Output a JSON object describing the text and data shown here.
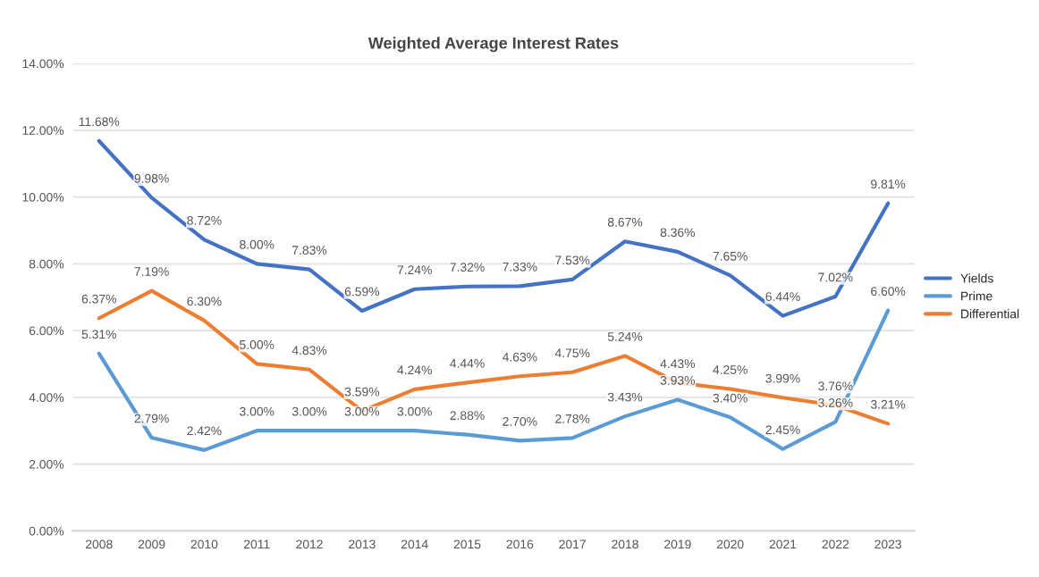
{
  "chart_data": {
    "type": "line",
    "title": "Weighted Average Interest Rates",
    "categories": [
      "2008",
      "2009",
      "2010",
      "2011",
      "2012",
      "2013",
      "2014",
      "2015",
      "2016",
      "2017",
      "2018",
      "2019",
      "2020",
      "2021",
      "2022",
      "2023"
    ],
    "series": [
      {
        "name": "Yields",
        "color": "#4472c4",
        "values": [
          11.68,
          9.98,
          8.72,
          8.0,
          7.83,
          6.59,
          7.24,
          7.32,
          7.33,
          7.53,
          8.67,
          8.36,
          7.65,
          6.44,
          7.02,
          9.81
        ],
        "value_labels": [
          "11.68%",
          "9.98%",
          "8.72%",
          "8.00%",
          "7.83%",
          "6.59%",
          "7.24%",
          "7.32%",
          "7.33%",
          "7.53%",
          "8.67%",
          "8.36%",
          "7.65%",
          "6.44%",
          "7.02%",
          "9.81%"
        ]
      },
      {
        "name": "Prime",
        "color": "#5b9bd5",
        "values": [
          5.31,
          2.79,
          2.42,
          3.0,
          3.0,
          3.0,
          3.0,
          2.88,
          2.7,
          2.78,
          3.43,
          3.93,
          3.4,
          2.45,
          3.26,
          6.6
        ],
        "value_labels": [
          "5.31%",
          "2.79%",
          "2.42%",
          "3.00%",
          "3.00%",
          "3.00%",
          "3.00%",
          "2.88%",
          "2.70%",
          "2.78%",
          "3.43%",
          "3.93%",
          "3.40%",
          "2.45%",
          "3.26%",
          "6.60%"
        ]
      },
      {
        "name": "Differential",
        "color": "#ed7d31",
        "values": [
          6.37,
          7.19,
          6.3,
          5.0,
          4.83,
          3.59,
          4.24,
          4.44,
          4.63,
          4.75,
          5.24,
          4.43,
          4.25,
          3.99,
          3.76,
          3.21
        ],
        "value_labels": [
          "6.37%",
          "7.19%",
          "6.30%",
          "5.00%",
          "4.83%",
          "3.59%",
          "4.24%",
          "4.44%",
          "4.63%",
          "4.75%",
          "5.24%",
          "4.43%",
          "4.25%",
          "3.99%",
          "3.76%",
          "3.21%"
        ]
      }
    ],
    "ylim": [
      0,
      14
    ],
    "yticks": [
      {
        "value": 0,
        "label": "0.00%"
      },
      {
        "value": 2,
        "label": "2.00%"
      },
      {
        "value": 4,
        "label": "4.00%"
      },
      {
        "value": 6,
        "label": "6.00%"
      },
      {
        "value": 8,
        "label": "8.00%"
      },
      {
        "value": 10,
        "label": "10.00%"
      },
      {
        "value": 12,
        "label": "12.00%"
      },
      {
        "value": 14,
        "label": "14.00%"
      }
    ],
    "grid": "y",
    "legend": "right",
    "marker": "none",
    "line_style": "solid"
  }
}
